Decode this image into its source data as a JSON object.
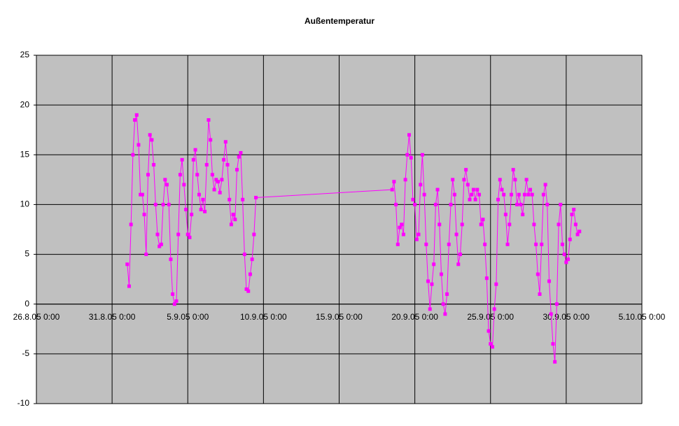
{
  "chart_data": {
    "type": "line",
    "title": "Außentemperatur",
    "color": "#ff00ff",
    "grid": true,
    "x": [
      "1.9.05 0:00",
      "1.9.05 3:00",
      "1.9.05 6:00",
      "1.9.05 9:00",
      "1.9.05 12:00",
      "1.9.05 15:00",
      "1.9.05 18:00",
      "1.9.05 21:00",
      "2.9.05 0:00",
      "2.9.05 3:00",
      "2.9.05 6:00",
      "2.9.05 9:00",
      "2.9.05 12:00",
      "2.9.05 15:00",
      "2.9.05 18:00",
      "2.9.05 21:00",
      "3.9.05 0:00",
      "3.9.05 3:00",
      "3.9.05 6:00",
      "3.9.05 9:00",
      "3.9.05 12:00",
      "3.9.05 15:00",
      "3.9.05 18:00",
      "3.9.05 21:00",
      "4.9.05 0:00",
      "4.9.05 3:00",
      "4.9.05 6:00",
      "4.9.05 9:00",
      "4.9.05 12:00",
      "4.9.05 15:00",
      "4.9.05 18:00",
      "4.9.05 21:00",
      "5.9.05 0:00",
      "5.9.05 3:00",
      "5.9.05 6:00",
      "5.9.05 9:00",
      "5.9.05 12:00",
      "5.9.05 15:00",
      "5.9.05 18:00",
      "5.9.05 21:00",
      "6.9.05 0:00",
      "6.9.05 3:00",
      "6.9.05 6:00",
      "6.9.05 9:00",
      "6.9.05 12:00",
      "6.9.05 15:00",
      "6.9.05 18:00",
      "6.9.05 21:00",
      "7.9.05 0:00",
      "7.9.05 3:00",
      "7.9.05 6:00",
      "7.9.05 9:00",
      "7.9.05 12:00",
      "7.9.05 15:00",
      "7.9.05 18:00",
      "7.9.05 21:00",
      "8.9.05 0:00",
      "8.9.05 3:00",
      "8.9.05 6:00",
      "8.9.05 9:00",
      "8.9.05 12:00",
      "8.9.05 15:00",
      "8.9.05 18:00",
      "8.9.05 21:00",
      "9.9.05 0:00",
      "9.9.05 3:00",
      "9.9.05 6:00",
      "9.9.05 9:00",
      "9.9.05 12:00",
      "18.9.05 12:00",
      "18.9.05 15:00",
      "18.9.05 18:00",
      "18.9.05 21:00",
      "19.9.05 0:00",
      "19.9.05 3:00",
      "19.9.05 6:00",
      "19.9.05 9:00",
      "19.9.05 12:00",
      "19.9.05 15:00",
      "19.9.05 18:00",
      "19.9.05 21:00",
      "20.9.05 0:00",
      "20.9.05 3:00",
      "20.9.05 6:00",
      "20.9.05 9:00",
      "20.9.05 12:00",
      "20.9.05 15:00",
      "20.9.05 18:00",
      "20.9.05 21:00",
      "21.9.05 0:00",
      "21.9.05 3:00",
      "21.9.05 6:00",
      "21.9.05 9:00",
      "21.9.05 12:00",
      "21.9.05 15:00",
      "21.9.05 18:00",
      "21.9.05 21:00",
      "22.9.05 0:00",
      "22.9.05 3:00",
      "22.9.05 6:00",
      "22.9.05 9:00",
      "22.9.05 12:00",
      "22.9.05 15:00",
      "22.9.05 18:00",
      "22.9.05 21:00",
      "23.9.05 0:00",
      "23.9.05 3:00",
      "23.9.05 6:00",
      "23.9.05 9:00",
      "23.9.05 12:00",
      "23.9.05 15:00",
      "23.9.05 18:00",
      "23.9.05 21:00",
      "24.9.05 0:00",
      "24.9.05 3:00",
      "24.9.05 6:00",
      "24.9.05 9:00",
      "24.9.05 12:00",
      "24.9.05 15:00",
      "24.9.05 18:00",
      "24.9.05 21:00",
      "25.9.05 0:00",
      "25.9.05 3:00",
      "25.9.05 6:00",
      "25.9.05 9:00",
      "25.9.05 12:00",
      "25.9.05 15:00",
      "25.9.05 18:00",
      "25.9.05 21:00",
      "26.9.05 0:00",
      "26.9.05 3:00",
      "26.9.05 6:00",
      "26.9.05 9:00",
      "26.9.05 12:00",
      "26.9.05 15:00",
      "26.9.05 18:00",
      "26.9.05 21:00",
      "27.9.05 0:00",
      "27.9.05 3:00",
      "27.9.05 6:00",
      "27.9.05 9:00",
      "27.9.05 12:00",
      "27.9.05 15:00",
      "27.9.05 18:00",
      "27.9.05 21:00",
      "28.9.05 0:00",
      "28.9.05 3:00",
      "28.9.05 6:00",
      "28.9.05 9:00",
      "28.9.05 12:00",
      "28.9.05 15:00",
      "28.9.05 18:00",
      "28.9.05 21:00",
      "29.9.05 0:00",
      "29.9.05 3:00",
      "29.9.05 6:00",
      "29.9.05 9:00",
      "29.9.05 12:00",
      "29.9.05 15:00",
      "29.9.05 18:00",
      "29.9.05 21:00",
      "30.9.05 0:00",
      "30.9.05 3:00",
      "30.9.05 6:00",
      "30.9.05 9:00",
      "30.9.05 12:00",
      "30.9.05 15:00",
      "30.9.05 18:00",
      "30.9.05 21:00"
    ],
    "values": [
      4,
      1.8,
      8,
      15,
      18.5,
      19,
      16,
      11,
      11,
      9,
      5,
      13,
      17,
      16.5,
      14,
      10,
      7,
      5.8,
      6,
      10,
      12.5,
      12,
      10,
      4.5,
      1,
      0,
      0.3,
      7,
      13,
      14.5,
      12,
      9.5,
      7,
      6.7,
      9,
      14.5,
      15.5,
      13,
      11,
      9.5,
      10.5,
      9.3,
      14,
      18.5,
      16.5,
      13,
      11.5,
      12.5,
      12.3,
      11.2,
      12.5,
      14.5,
      16.3,
      14,
      10.5,
      8,
      9,
      8.5,
      13.5,
      14.8,
      15.2,
      10.5,
      5,
      1.5,
      1.3,
      3,
      4.5,
      7,
      10.7,
      11.5,
      12.3,
      10,
      6,
      7.7,
      8,
      7,
      12.5,
      15,
      17,
      14.7,
      10.5,
      10,
      6.5,
      7,
      12,
      15,
      11,
      6,
      2.3,
      -0.5,
      2,
      4,
      10,
      11.5,
      8,
      3,
      0,
      -1,
      1,
      6,
      10,
      12.5,
      11,
      7,
      4,
      5,
      8,
      12.5,
      13.5,
      12,
      10.5,
      11,
      11.5,
      10.5,
      11.5,
      11,
      8,
      8.5,
      6,
      2.6,
      -2.7,
      -4,
      -4.3,
      -0.5,
      2,
      10.5,
      12.5,
      11.5,
      11,
      9,
      6,
      8,
      11,
      13.5,
      12.5,
      10,
      11,
      10,
      9,
      11,
      12.5,
      11,
      11.5,
      11,
      8,
      6,
      3,
      1,
      6,
      11,
      12,
      10,
      2.3,
      -1,
      -4,
      -5.8,
      0,
      8,
      10,
      6,
      5,
      4.2,
      4.5,
      6.5,
      9,
      9.5,
      8,
      7,
      7.3
    ],
    "xlim": [
      "26.8.05 0:00",
      "5.10.05 0:00"
    ],
    "xticks": [
      "26.8.05 0:00",
      "31.8.05 0:00",
      "5.9.05 0:00",
      "10.9.05 0:00",
      "15.9.05 0:00",
      "20.9.05 0:00",
      "25.9.05 0:00",
      "30.9.05 0:00",
      "5.10.05 0:00"
    ],
    "ylim": [
      -10,
      25
    ],
    "yticks": [
      -10,
      -5,
      0,
      5,
      10,
      15,
      20,
      25
    ]
  }
}
